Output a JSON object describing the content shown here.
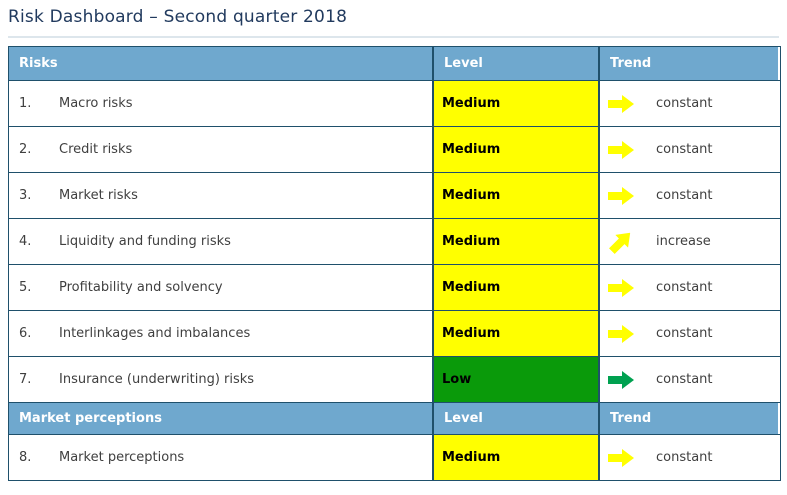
{
  "page": {
    "title": "Risk Dashboard – Second quarter 2018"
  },
  "colors": {
    "header_bg": "#6fa8ce",
    "header_text": "#ffffff",
    "border": "#1f506b",
    "title_text": "#213a5e",
    "body_text": "#3f3f3f",
    "divider": "#dde6ec",
    "level_yellow": "#ffff00",
    "level_green": "#0a9a0a",
    "arrow_yellow": "#ffff00",
    "arrow_green": "#00a150"
  },
  "table": {
    "sections": [
      {
        "header": {
          "risks": "Risks",
          "level": "Level",
          "trend": "Trend"
        },
        "rows": [
          {
            "num": "1.",
            "name": "Macro risks",
            "level": "Medium",
            "level_color": "yellow",
            "trend": "constant",
            "trend_dir": "right",
            "trend_color": "yellow"
          },
          {
            "num": "2.",
            "name": "Credit risks",
            "level": "Medium",
            "level_color": "yellow",
            "trend": "constant",
            "trend_dir": "right",
            "trend_color": "yellow"
          },
          {
            "num": "3.",
            "name": "Market risks",
            "level": "Medium",
            "level_color": "yellow",
            "trend": "constant",
            "trend_dir": "right",
            "trend_color": "yellow"
          },
          {
            "num": "4.",
            "name": "Liquidity and funding risks",
            "level": "Medium",
            "level_color": "yellow",
            "trend": "increase",
            "trend_dir": "up-right",
            "trend_color": "yellow"
          },
          {
            "num": "5.",
            "name": "Profitability and solvency",
            "level": "Medium",
            "level_color": "yellow",
            "trend": "constant",
            "trend_dir": "right",
            "trend_color": "yellow"
          },
          {
            "num": "6.",
            "name": "Interlinkages and imbalances",
            "level": "Medium",
            "level_color": "yellow",
            "trend": "constant",
            "trend_dir": "right",
            "trend_color": "yellow"
          },
          {
            "num": "7.",
            "name": "Insurance (underwriting) risks",
            "level": "Low",
            "level_color": "green",
            "trend": "constant",
            "trend_dir": "right",
            "trend_color": "green"
          }
        ]
      },
      {
        "header": {
          "risks": "Market perceptions",
          "level": "Level",
          "trend": "Trend"
        },
        "rows": [
          {
            "num": "8.",
            "name": "Market perceptions",
            "level": "Medium",
            "level_color": "yellow",
            "trend": "constant",
            "trend_dir": "right",
            "trend_color": "yellow"
          }
        ]
      }
    ]
  }
}
